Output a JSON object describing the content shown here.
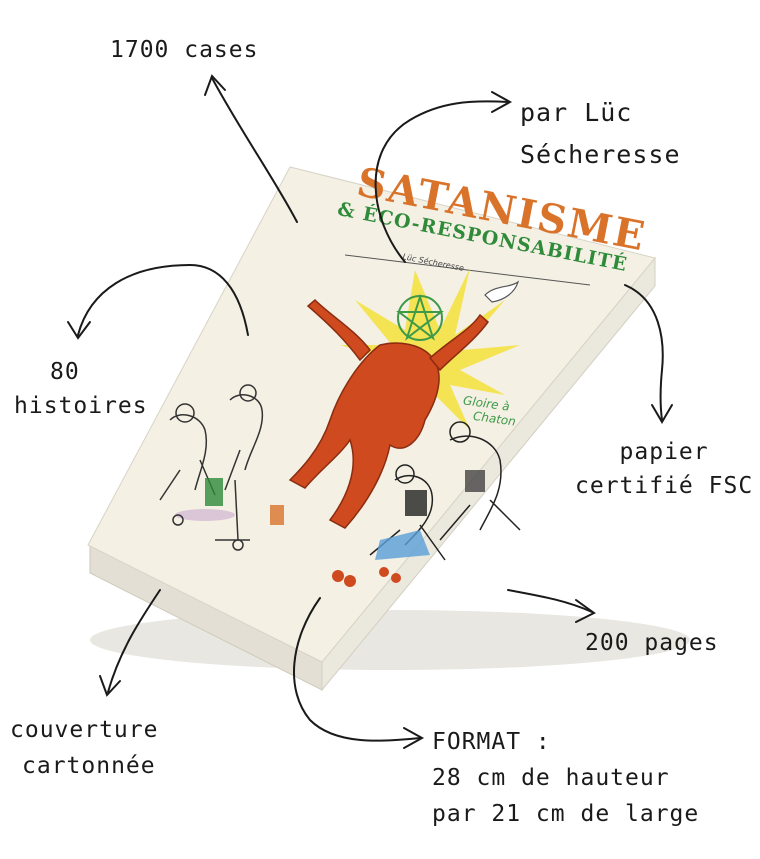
{
  "annotations": {
    "cases": "1700 cases",
    "author": [
      "par Lüc",
      "Sécheresse"
    ],
    "stories": [
      "80",
      "histoires"
    ],
    "paper": [
      "papier",
      "certifié FSC"
    ],
    "pages": "200 pages",
    "cover": [
      "couverture",
      "cartonnée"
    ],
    "format": [
      "FORMAT :",
      "28 cm de hauteur",
      "par 21 cm de large"
    ]
  },
  "cover": {
    "title": "SATANISME",
    "subtitle": "& ÉCO-RESPONSABILITÉ",
    "author": "Lüc Sécheresse",
    "slogan": [
      "Gloire à",
      "Chaton"
    ]
  },
  "colors": {
    "ink": "#1a1a1a",
    "cover_bg": "#f4f0e4",
    "title_orange": "#d9732a",
    "subtitle_green": "#2f8a3a",
    "devil_red": "#cf4a1e",
    "sun_yellow": "#f3e03a"
  }
}
